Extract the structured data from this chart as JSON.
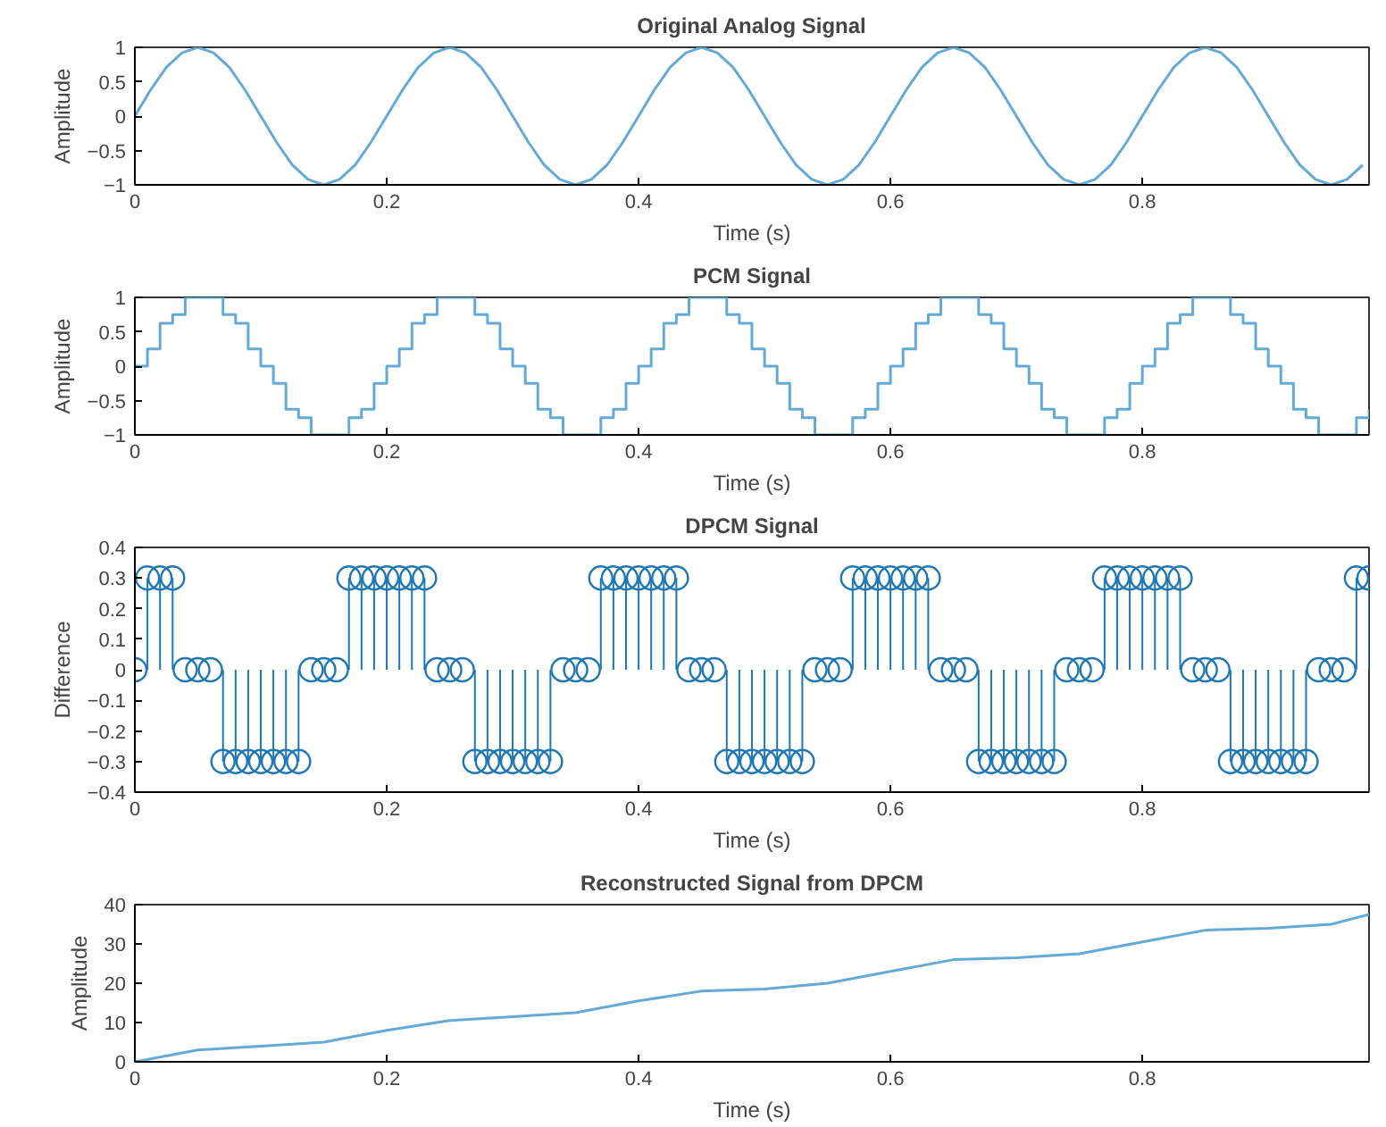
{
  "chart_data": [
    {
      "type": "line",
      "title": "Original Analog Signal",
      "xlabel": "Time (s)",
      "ylabel": "Amplitude",
      "color": "#64aad6",
      "grid": false,
      "xlim": [
        0,
        0.98
      ],
      "ylim": [
        -1,
        1
      ],
      "xticks": [
        0,
        0.2,
        0.4,
        0.6,
        0.8
      ],
      "yticks": [
        -1,
        -0.5,
        0,
        0.5,
        1
      ],
      "x": [
        0,
        0.0125,
        0.025,
        0.0375,
        0.05,
        0.0625,
        0.075,
        0.0875,
        0.1,
        0.1125,
        0.125,
        0.1375,
        0.15,
        0.1625,
        0.175,
        0.1875,
        0.2,
        0.2125,
        0.225,
        0.2375,
        0.25,
        0.2625,
        0.275,
        0.2875,
        0.3,
        0.3125,
        0.325,
        0.3375,
        0.35,
        0.3625,
        0.375,
        0.3875,
        0.4,
        0.4125,
        0.425,
        0.4375,
        0.45,
        0.4625,
        0.475,
        0.4875,
        0.5,
        0.5125,
        0.525,
        0.5375,
        0.55,
        0.5625,
        0.575,
        0.5875,
        0.6,
        0.6125,
        0.625,
        0.6375,
        0.65,
        0.6625,
        0.675,
        0.6875,
        0.7,
        0.7125,
        0.725,
        0.7375,
        0.75,
        0.7625,
        0.775,
        0.7875,
        0.8,
        0.8125,
        0.825,
        0.8375,
        0.85,
        0.8625,
        0.875,
        0.8875,
        0.9,
        0.9125,
        0.925,
        0.9375,
        0.95,
        0.9625,
        0.975
      ],
      "values": [
        0,
        0.38,
        0.71,
        0.92,
        1,
        0.92,
        0.71,
        0.38,
        0,
        -0.38,
        -0.71,
        -0.92,
        -1,
        -0.92,
        -0.71,
        -0.38,
        0,
        0.38,
        0.71,
        0.92,
        1,
        0.92,
        0.71,
        0.38,
        0,
        -0.38,
        -0.71,
        -0.92,
        -1,
        -0.92,
        -0.71,
        -0.38,
        0,
        0.38,
        0.71,
        0.92,
        1,
        0.92,
        0.71,
        0.38,
        0,
        -0.38,
        -0.71,
        -0.92,
        -1,
        -0.92,
        -0.71,
        -0.38,
        0,
        0.38,
        0.71,
        0.92,
        1,
        0.92,
        0.71,
        0.38,
        0,
        -0.38,
        -0.71,
        -0.92,
        -1,
        -0.92,
        -0.71,
        -0.38,
        0,
        0.38,
        0.71,
        0.92,
        1,
        0.92,
        0.71,
        0.38,
        0,
        -0.38,
        -0.71,
        -0.92,
        -1,
        -0.92,
        -0.71
      ]
    },
    {
      "type": "step",
      "title": "PCM Signal",
      "xlabel": "Time (s)",
      "ylabel": "Amplitude",
      "color": "#64aad6",
      "grid": false,
      "xlim": [
        0,
        0.98
      ],
      "ylim": [
        -1,
        1
      ],
      "xticks": [
        0,
        0.2,
        0.4,
        0.6,
        0.8
      ],
      "yticks": [
        -1,
        -0.5,
        0,
        0.5,
        1
      ],
      "x": [
        0,
        0.01,
        0.02,
        0.03,
        0.04,
        0.05,
        0.06,
        0.07,
        0.08,
        0.09,
        0.1,
        0.11,
        0.12,
        0.13,
        0.14,
        0.15,
        0.16,
        0.17,
        0.18,
        0.19,
        0.2,
        0.21,
        0.22,
        0.23,
        0.24,
        0.25,
        0.26,
        0.27,
        0.28,
        0.29,
        0.3,
        0.31,
        0.32,
        0.33,
        0.34,
        0.35,
        0.36,
        0.37,
        0.38,
        0.39,
        0.4,
        0.41,
        0.42,
        0.43,
        0.44,
        0.45,
        0.46,
        0.47,
        0.48,
        0.49,
        0.5,
        0.51,
        0.52,
        0.53,
        0.54,
        0.55,
        0.56,
        0.57,
        0.58,
        0.59,
        0.6,
        0.61,
        0.62,
        0.63,
        0.64,
        0.65,
        0.66,
        0.67,
        0.68,
        0.69,
        0.7,
        0.71,
        0.72,
        0.73,
        0.74,
        0.75,
        0.76,
        0.77,
        0.78,
        0.79,
        0.8,
        0.81,
        0.82,
        0.83,
        0.84,
        0.85,
        0.86,
        0.87,
        0.88,
        0.89,
        0.9,
        0.91,
        0.92,
        0.93,
        0.94,
        0.95,
        0.96,
        0.97,
        0.98
      ],
      "values": [
        0,
        0.25,
        0.625,
        0.75,
        1,
        1,
        1,
        0.75,
        0.625,
        0.25,
        0,
        -0.25,
        -0.625,
        -0.75,
        -1,
        -1,
        -1,
        -0.75,
        -0.625,
        -0.25,
        0,
        0.25,
        0.625,
        0.75,
        1,
        1,
        1,
        0.75,
        0.625,
        0.25,
        0,
        -0.25,
        -0.625,
        -0.75,
        -1,
        -1,
        -1,
        -0.75,
        -0.625,
        -0.25,
        0,
        0.25,
        0.625,
        0.75,
        1,
        1,
        1,
        0.75,
        0.625,
        0.25,
        0,
        -0.25,
        -0.625,
        -0.75,
        -1,
        -1,
        -1,
        -0.75,
        -0.625,
        -0.25,
        0,
        0.25,
        0.625,
        0.75,
        1,
        1,
        1,
        0.75,
        0.625,
        0.25,
        0,
        -0.25,
        -0.625,
        -0.75,
        -1,
        -1,
        -1,
        -0.75,
        -0.625,
        -0.25,
        0,
        0.25,
        0.625,
        0.75,
        1,
        1,
        1,
        0.75,
        0.625,
        0.25,
        0,
        -0.25,
        -0.625,
        -0.75,
        -1,
        -1,
        -1,
        -0.75,
        -0.625
      ]
    },
    {
      "type": "lollipop",
      "title": "DPCM Signal",
      "xlabel": "Time (s)",
      "ylabel": "Difference",
      "color": "#1f77b4",
      "marker": "circle",
      "grid": false,
      "xlim": [
        0,
        0.98
      ],
      "ylim": [
        -0.4,
        0.4
      ],
      "xticks": [
        0,
        0.2,
        0.4,
        0.6,
        0.8
      ],
      "yticks": [
        -0.4,
        -0.3,
        -0.2,
        -0.1,
        0,
        0.1,
        0.2,
        0.3,
        0.4
      ],
      "x": [
        0,
        0.01,
        0.02,
        0.03,
        0.04,
        0.05,
        0.06,
        0.07,
        0.08,
        0.09,
        0.1,
        0.11,
        0.12,
        0.13,
        0.14,
        0.15,
        0.16,
        0.17,
        0.18,
        0.19,
        0.2,
        0.21,
        0.22,
        0.23,
        0.24,
        0.25,
        0.26,
        0.27,
        0.28,
        0.29,
        0.3,
        0.31,
        0.32,
        0.33,
        0.34,
        0.35,
        0.36,
        0.37,
        0.38,
        0.39,
        0.4,
        0.41,
        0.42,
        0.43,
        0.44,
        0.45,
        0.46,
        0.47,
        0.48,
        0.49,
        0.5,
        0.51,
        0.52,
        0.53,
        0.54,
        0.55,
        0.56,
        0.57,
        0.58,
        0.59,
        0.6,
        0.61,
        0.62,
        0.63,
        0.64,
        0.65,
        0.66,
        0.67,
        0.68,
        0.69,
        0.7,
        0.71,
        0.72,
        0.73,
        0.74,
        0.75,
        0.76,
        0.77,
        0.78,
        0.79,
        0.8,
        0.81,
        0.82,
        0.83,
        0.84,
        0.85,
        0.86,
        0.87,
        0.88,
        0.89,
        0.9,
        0.91,
        0.92,
        0.93,
        0.94,
        0.95,
        0.96,
        0.97,
        0.98
      ],
      "values": [
        0,
        0.3,
        0.3,
        0.3,
        0,
        0,
        0,
        -0.3,
        -0.3,
        -0.3,
        -0.3,
        -0.3,
        -0.3,
        -0.3,
        0,
        0,
        0,
        0.3,
        0.3,
        0.3,
        0.3,
        0.3,
        0.3,
        0.3,
        0,
        0,
        0,
        -0.3,
        -0.3,
        -0.3,
        -0.3,
        -0.3,
        -0.3,
        -0.3,
        0,
        0,
        0,
        0.3,
        0.3,
        0.3,
        0.3,
        0.3,
        0.3,
        0.3,
        0,
        0,
        0,
        -0.3,
        -0.3,
        -0.3,
        -0.3,
        -0.3,
        -0.3,
        -0.3,
        0,
        0,
        0,
        0.3,
        0.3,
        0.3,
        0.3,
        0.3,
        0.3,
        0.3,
        0,
        0,
        0,
        -0.3,
        -0.3,
        -0.3,
        -0.3,
        -0.3,
        -0.3,
        -0.3,
        0,
        0,
        0,
        0.3,
        0.3,
        0.3,
        0.3,
        0.3,
        0.3,
        0.3,
        0,
        0,
        0,
        -0.3,
        -0.3,
        -0.3,
        -0.3,
        -0.3,
        -0.3,
        -0.3,
        0,
        0,
        0,
        0.3,
        0.3
      ]
    },
    {
      "type": "line",
      "title": "Reconstructed Signal from DPCM",
      "xlabel": "Time (s)",
      "ylabel": "Amplitude",
      "color": "#64aad6",
      "grid": false,
      "xlim": [
        0,
        0.98
      ],
      "ylim": [
        0,
        40
      ],
      "xticks": [
        0,
        0.2,
        0.4,
        0.6,
        0.8
      ],
      "yticks": [
        0,
        10,
        20,
        30,
        40
      ],
      "x": [
        0,
        0.05,
        0.1,
        0.15,
        0.2,
        0.25,
        0.3,
        0.35,
        0.4,
        0.45,
        0.5,
        0.55,
        0.6,
        0.65,
        0.7,
        0.75,
        0.8,
        0.85,
        0.9,
        0.95,
        0.98
      ],
      "values": [
        0,
        3,
        4,
        5,
        8,
        10.5,
        11.5,
        12.5,
        15.5,
        18,
        18.5,
        20,
        23,
        26,
        26.5,
        27.5,
        30.5,
        33.5,
        34,
        35,
        37.5
      ]
    }
  ]
}
